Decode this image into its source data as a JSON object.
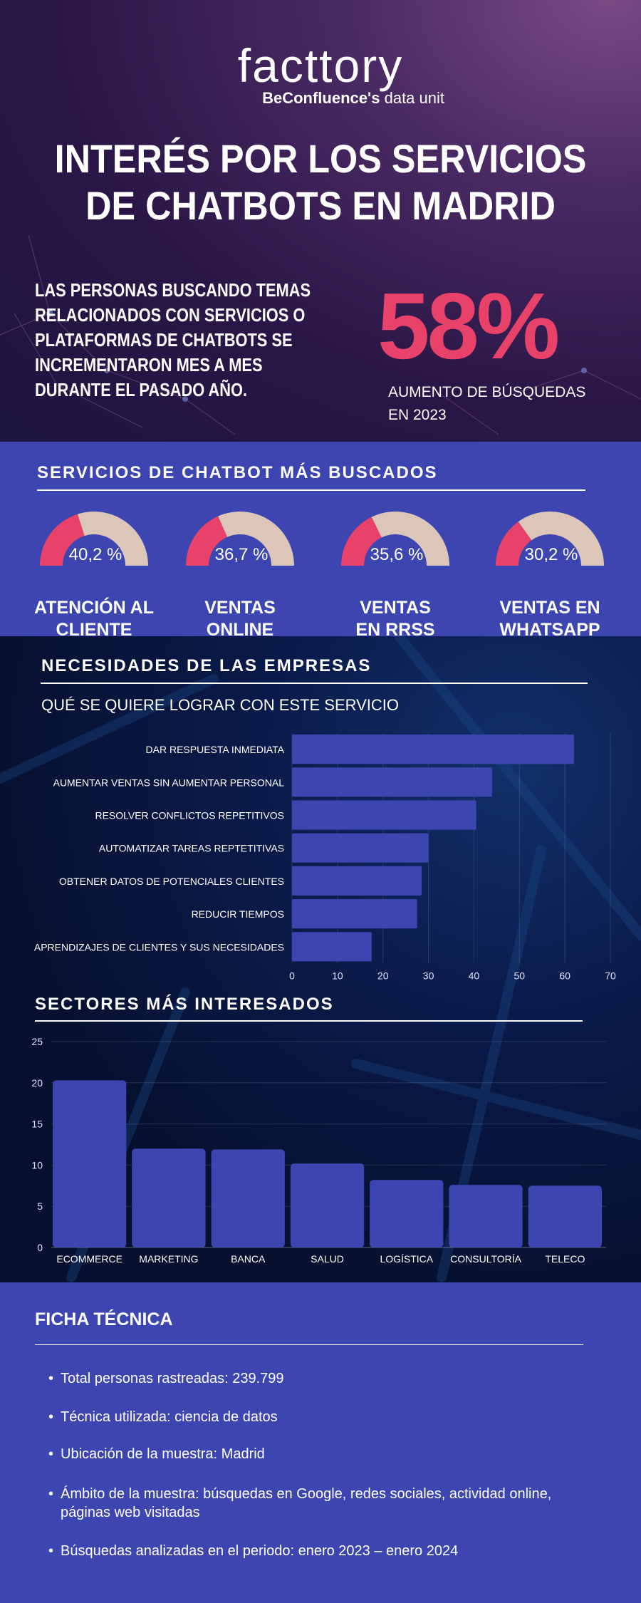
{
  "header": {
    "logo": "facttory",
    "logo_sub_bold": "BeConfluence's",
    "logo_sub": " data unit",
    "title_line1": "INTERÉS POR LOS SERVICIOS",
    "title_line2": "DE CHATBOTS EN MADRID",
    "lead": [
      "LAS PERSONAS BUSCANDO TEMAS",
      "RELACIONADOS CON SERVICIOS O",
      "PLATAFORMAS DE CHATBOTS SE",
      "INCREMENTARON MES A MES",
      "DURANTE EL PASADO AÑO."
    ],
    "stat": "58%",
    "stat_caption_1": "AUMENTO DE BÚSQUEDAS",
    "stat_caption_2": "EN 2023"
  },
  "colors": {
    "accent": "#e8416a",
    "band": "#3c45b0",
    "gauge_rest": "#dcc6ba",
    "bar": "#3c45b0"
  },
  "services": {
    "title": "SERVICIOS DE CHATBOT MÁS BUSCADOS",
    "items": [
      {
        "value": 40.2,
        "text": "40,2 %",
        "label1": "ATENCIÓN AL",
        "label2": "CLIENTE"
      },
      {
        "value": 36.7,
        "text": "36,7 %",
        "label1": "VENTAS",
        "label2": "ONLINE"
      },
      {
        "value": 35.6,
        "text": "35,6 %",
        "label1": "VENTAS",
        "label2": "EN RRSS"
      },
      {
        "value": 30.2,
        "text": "30,2 %",
        "label1": "VENTAS EN",
        "label2": "WHATSAPP"
      }
    ]
  },
  "needs": {
    "title": "NECESIDADES DE LAS EMPRESAS",
    "subtitle": "QUÉ SE QUIERE LOGRAR CON ESTE SERVICIO"
  },
  "sectors": {
    "title": "SECTORES MÁS INTERESADOS"
  },
  "chart_data": [
    {
      "type": "bar",
      "orientation": "horizontal",
      "categories": [
        "DAR RESPUESTA INMEDIATA",
        "AUMENTAR VENTAS SIN AUMENTAR PERSONAL",
        "RESOLVER CONFLICTOS REPETITIVOS",
        "AUTOMATIZAR TAREAS REPTETITIVAS",
        "OBTENER DATOS DE POTENCIALES CLIENTES",
        "REDUCIR TIEMPOS",
        "APRENDIZAJES DE CLIENTES Y SUS NECESIDADES"
      ],
      "values": [
        62,
        44,
        40.5,
        30,
        28.5,
        27.5,
        17.5
      ],
      "xlim": [
        0,
        70
      ],
      "xticks": [
        "0",
        "10",
        "20",
        "30",
        "40",
        "50",
        "60",
        "70"
      ],
      "grid": true
    },
    {
      "type": "bar",
      "orientation": "vertical",
      "categories": [
        "ECOMMERCE",
        "MARKETING",
        "BANCA",
        "SALUD",
        "LOGÍSTICA",
        "CONSULTORÍA",
        "TELECO"
      ],
      "values": [
        20.3,
        12,
        11.9,
        10.2,
        8.2,
        7.6,
        7.5
      ],
      "ylim": [
        0,
        25
      ],
      "yticks": [
        "0",
        "5",
        "10",
        "15",
        "20",
        "25"
      ],
      "grid": true
    }
  ],
  "ficha": {
    "title": "FICHA TÉCNICA",
    "items": [
      "Total personas rastreadas: 239.799",
      "Técnica utilizada: ciencia de datos",
      "Ubicación de la muestra: Madrid",
      "Ámbito de la muestra: búsquedas en Google, redes sociales, actividad online, páginas web visitadas",
      "Búsquedas analizadas en el periodo: enero 2023 – enero 2024"
    ]
  }
}
